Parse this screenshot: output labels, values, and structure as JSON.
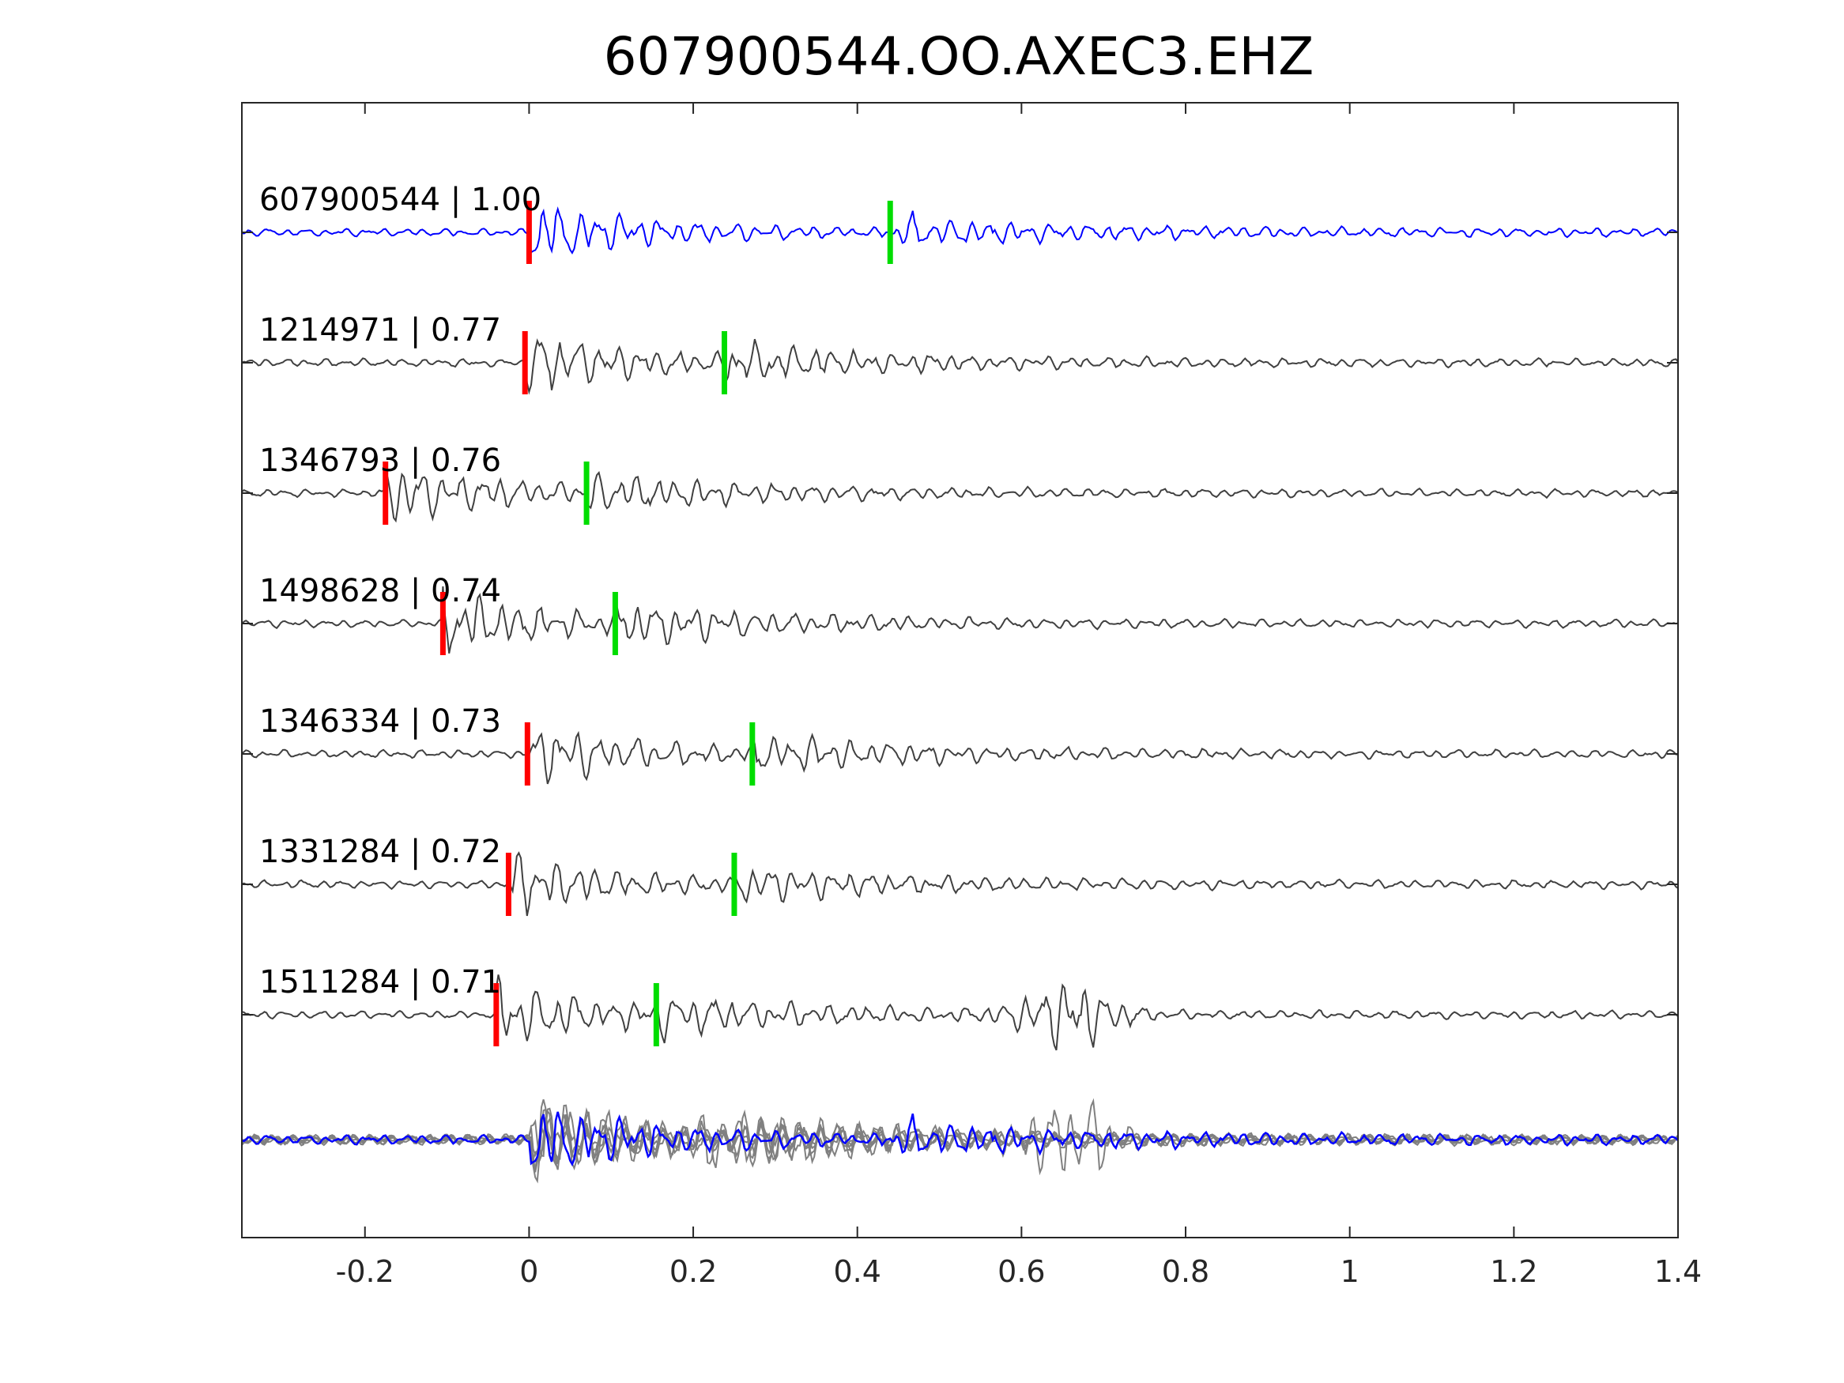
{
  "chart_data": {
    "type": "line",
    "title": "607900544.OO.AXEC3.EHZ",
    "xlabel": "",
    "ylabel": "",
    "xlim": [
      -0.35,
      1.4
    ],
    "xticks": [
      -0.2,
      0,
      0.2,
      0.4,
      0.6,
      0.8,
      1,
      1.2,
      1.4
    ],
    "xtick_labels": [
      "-0.2",
      "0",
      "0.2",
      "0.4",
      "0.6",
      "0.8",
      "1",
      "1.2",
      "1.4"
    ],
    "grid": false,
    "legend": "none",
    "colors": {
      "template": "#0000ff",
      "match": "#404040",
      "overlay": "#808080",
      "p_pick": "#ff0000",
      "s_pick": "#00dd00",
      "axis": "#262626"
    },
    "traces": [
      {
        "id": "607900544",
        "corr": "1.00",
        "label": "607900544 | 1.00",
        "p_pick": 0.0,
        "s_pick": 0.44,
        "template": true
      },
      {
        "id": "1214971",
        "corr": "0.77",
        "label": "1214971 | 0.77",
        "p_pick": -0.005,
        "s_pick": 0.238,
        "template": false
      },
      {
        "id": "1346793",
        "corr": "0.76",
        "label": "1346793 | 0.76",
        "p_pick": -0.175,
        "s_pick": 0.07,
        "template": false
      },
      {
        "id": "1498628",
        "corr": "0.74",
        "label": "1498628 | 0.74",
        "p_pick": -0.105,
        "s_pick": 0.105,
        "template": false
      },
      {
        "id": "1346334",
        "corr": "0.73",
        "label": "1346334 | 0.73",
        "p_pick": -0.002,
        "s_pick": 0.272,
        "template": false
      },
      {
        "id": "1331284",
        "corr": "0.72",
        "label": "1331284 | 0.72",
        "p_pick": -0.025,
        "s_pick": 0.25,
        "template": false
      },
      {
        "id": "1511284",
        "corr": "0.71",
        "label": "1511284 | 0.71",
        "p_pick": -0.04,
        "s_pick": 0.155,
        "template": false
      }
    ],
    "stack": {
      "description": "overlay of all aligned traces"
    }
  }
}
